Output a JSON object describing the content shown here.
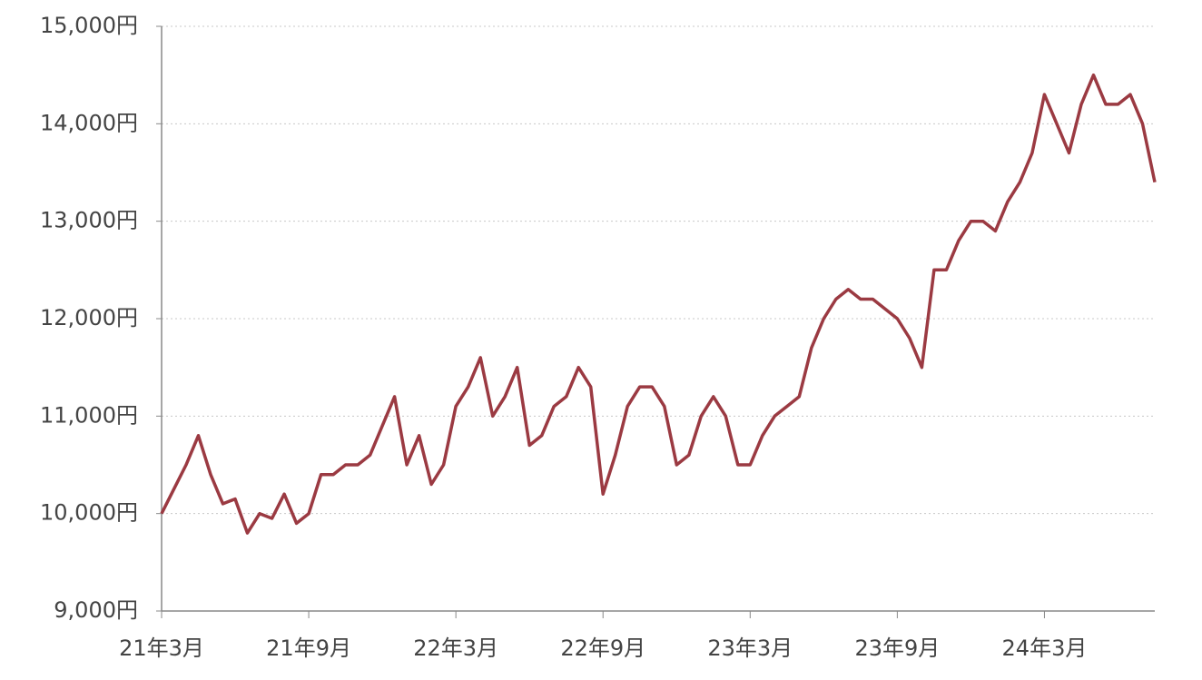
{
  "chart_data": {
    "type": "line",
    "categories": [
      "21年3月",
      null,
      null,
      null,
      null,
      null,
      null,
      null,
      null,
      null,
      null,
      null,
      "21年9月",
      null,
      null,
      null,
      null,
      null,
      null,
      null,
      null,
      null,
      null,
      null,
      "22年3月",
      null,
      null,
      null,
      null,
      null,
      null,
      null,
      null,
      null,
      null,
      null,
      "22年9月",
      null,
      null,
      null,
      null,
      null,
      null,
      null,
      null,
      null,
      null,
      null,
      "23年3月",
      null,
      null,
      null,
      null,
      null,
      null,
      null,
      null,
      null,
      null,
      null,
      "23年9月",
      null,
      null,
      null,
      null,
      null,
      null,
      null,
      null,
      null,
      null,
      null,
      "24年3月",
      null,
      null,
      null,
      null,
      null,
      null,
      null,
      null,
      null
    ],
    "series": [
      {
        "color": "#9b3a42",
        "values": [
          10000,
          10250,
          10500,
          10800,
          10400,
          10100,
          10150,
          9800,
          10000,
          9950,
          10200,
          9900,
          10000,
          10400,
          10400,
          10500,
          10500,
          10600,
          10900,
          11200,
          10500,
          10800,
          10300,
          10500,
          11100,
          11300,
          11600,
          11000,
          11200,
          11500,
          10700,
          10800,
          11100,
          11200,
          11500,
          11300,
          10200,
          10600,
          11100,
          11300,
          11300,
          11100,
          10500,
          10600,
          11000,
          11200,
          11000,
          10500,
          10500,
          10800,
          11000,
          11100,
          11200,
          11700,
          12000,
          12200,
          12300,
          12200,
          12200,
          12100,
          12000,
          11800,
          11500,
          12500,
          12500,
          12800,
          13000,
          13000,
          12900,
          13200,
          13400,
          13700,
          14300,
          14000,
          13700,
          14200,
          14500,
          14200,
          14200,
          14300,
          14000,
          13400
        ]
      }
    ],
    "ylim": [
      9000,
      15000
    ],
    "yticks": [
      {
        "value": 9000,
        "label": "9,000円"
      },
      {
        "value": 10000,
        "label": "10,000円"
      },
      {
        "value": 11000,
        "label": "11,000円"
      },
      {
        "value": 12000,
        "label": "12,000円"
      },
      {
        "value": 13000,
        "label": "13,000円"
      },
      {
        "value": 14000,
        "label": "14,000円"
      },
      {
        "value": 15000,
        "label": "15,000円"
      }
    ],
    "grid": true
  }
}
